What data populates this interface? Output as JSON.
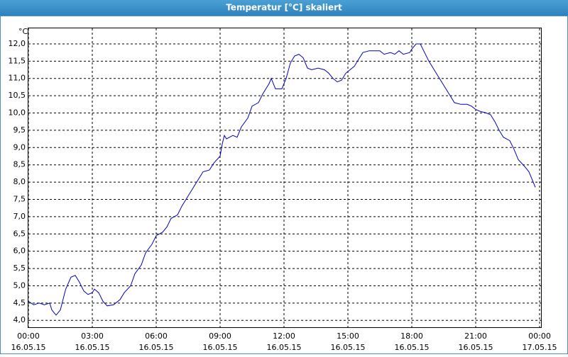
{
  "chart_data": {
    "type": "line",
    "title": "Temperatur [°C] skaliert",
    "y_unit": "°C",
    "x": [
      0,
      0.25,
      0.5,
      0.75,
      1.0,
      1.1,
      1.3,
      1.5,
      1.75,
      2.0,
      2.2,
      2.4,
      2.6,
      2.8,
      3.0,
      3.1,
      3.3,
      3.5,
      3.7,
      4.0,
      4.3,
      4.5,
      4.8,
      5.0,
      5.3,
      5.5,
      5.8,
      6.0,
      6.3,
      6.5,
      6.7,
      7.0,
      7.2,
      7.5,
      7.7,
      8.0,
      8.2,
      8.5,
      8.7,
      9.0,
      9.1,
      9.2,
      9.3,
      9.6,
      9.8,
      10.0,
      10.3,
      10.5,
      10.8,
      11.0,
      11.3,
      11.4,
      11.6,
      11.9,
      12.1,
      12.3,
      12.5,
      12.7,
      12.9,
      13.1,
      13.3,
      13.6,
      13.9,
      14.1,
      14.3,
      14.5,
      14.7,
      14.9,
      15.1,
      15.3,
      15.5,
      15.7,
      16.0,
      16.3,
      16.5,
      16.7,
      17.0,
      17.2,
      17.4,
      17.6,
      17.9,
      18.0,
      18.2,
      18.4,
      18.6,
      18.8,
      19.0,
      19.3,
      19.6,
      19.8,
      20.0,
      20.3,
      20.6,
      20.8,
      21.0,
      21.2,
      21.5,
      21.7,
      21.9,
      22.1,
      22.3,
      22.6,
      22.8,
      23.0,
      23.3,
      23.5,
      23.8
    ],
    "series": [
      {
        "name": "Temperatur",
        "color": "#0000c0",
        "values": [
          4.55,
          4.45,
          4.5,
          4.45,
          4.5,
          4.3,
          4.15,
          4.3,
          4.9,
          5.25,
          5.3,
          5.1,
          4.85,
          4.75,
          4.8,
          4.9,
          4.8,
          4.55,
          4.42,
          4.45,
          4.6,
          4.8,
          5.0,
          5.35,
          5.6,
          5.95,
          6.2,
          6.45,
          6.55,
          6.7,
          6.95,
          7.05,
          7.3,
          7.6,
          7.8,
          8.1,
          8.3,
          8.35,
          8.55,
          8.75,
          9.1,
          9.35,
          9.25,
          9.35,
          9.3,
          9.6,
          9.85,
          10.2,
          10.3,
          10.55,
          10.85,
          11.0,
          10.7,
          10.7,
          11.0,
          11.45,
          11.65,
          11.7,
          11.6,
          11.3,
          11.25,
          11.3,
          11.25,
          11.15,
          11.0,
          10.9,
          10.95,
          11.15,
          11.25,
          11.35,
          11.55,
          11.75,
          11.8,
          11.8,
          11.8,
          11.7,
          11.75,
          11.7,
          11.8,
          11.7,
          11.75,
          11.85,
          12.0,
          12.0,
          11.75,
          11.5,
          11.3,
          11.0,
          10.7,
          10.5,
          10.3,
          10.25,
          10.25,
          10.2,
          10.1,
          10.05,
          10.0,
          9.95,
          9.75,
          9.5,
          9.3,
          9.2,
          8.95,
          8.65,
          8.45,
          8.3,
          7.85
        ]
      }
    ],
    "xlim": [
      0,
      24
    ],
    "xticks": [
      {
        "value": 0,
        "label": [
          "00:00",
          "16.05.15"
        ]
      },
      {
        "value": 3,
        "label": [
          "03:00",
          "16.05.15"
        ]
      },
      {
        "value": 6,
        "label": [
          "06:00",
          "16.05.15"
        ]
      },
      {
        "value": 9,
        "label": [
          "09:00",
          "16.05.15"
        ]
      },
      {
        "value": 12,
        "label": [
          "12:00",
          "16.05.15"
        ]
      },
      {
        "value": 15,
        "label": [
          "15:00",
          "16.05.15"
        ]
      },
      {
        "value": 18,
        "label": [
          "18:00",
          "16.05.15"
        ]
      },
      {
        "value": 21,
        "label": [
          "21:00",
          "16.05.15"
        ]
      },
      {
        "value": 24,
        "label": [
          "00:00",
          "17.05.15"
        ]
      }
    ],
    "ylim": [
      3.8,
      12.45
    ],
    "yticks": [
      {
        "value": 4,
        "label": "4,0"
      },
      {
        "value": 4.5,
        "label": "4,5"
      },
      {
        "value": 5,
        "label": "5,0"
      },
      {
        "value": 5.5,
        "label": "5,5"
      },
      {
        "value": 6,
        "label": "6,0"
      },
      {
        "value": 6.5,
        "label": "6,5"
      },
      {
        "value": 7,
        "label": "7,0"
      },
      {
        "value": 7.5,
        "label": "7,5"
      },
      {
        "value": 8,
        "label": "8,0"
      },
      {
        "value": 8.5,
        "label": "8,5"
      },
      {
        "value": 9,
        "label": "9,0"
      },
      {
        "value": 9.5,
        "label": "9,5"
      },
      {
        "value": 10,
        "label": "10,0"
      },
      {
        "value": 10.5,
        "label": "10,5"
      },
      {
        "value": 11,
        "label": "11,0"
      },
      {
        "value": 11.5,
        "label": "11,5"
      },
      {
        "value": 12,
        "label": "12,0"
      }
    ],
    "grid": true
  }
}
